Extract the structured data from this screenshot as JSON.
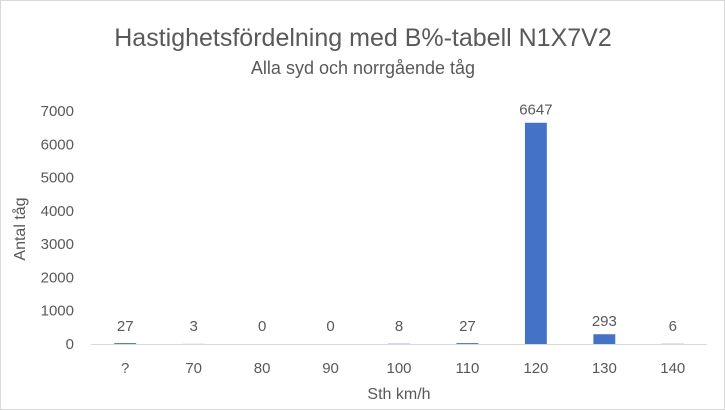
{
  "chart_data": {
    "type": "bar",
    "title": "Hastighetsfördelning med B%-tabell N1X7V2",
    "subtitle": "Alla syd och norrgående tåg",
    "xlabel": "Sth km/h",
    "ylabel": "Antal tåg",
    "categories": [
      "?",
      "70",
      "80",
      "90",
      "100",
      "110",
      "120",
      "130",
      "140"
    ],
    "values": [
      27,
      3,
      0,
      0,
      8,
      27,
      6647,
      293,
      6
    ],
    "data_labels": [
      "27",
      "3",
      "0",
      "0",
      "8",
      "27",
      "6647",
      "293",
      "6"
    ],
    "ylim": [
      0,
      7000
    ],
    "yticks": [
      0,
      1000,
      2000,
      3000,
      4000,
      5000,
      6000,
      7000
    ],
    "ytick_labels": [
      "0",
      "1000",
      "2000",
      "3000",
      "4000",
      "5000",
      "6000",
      "7000"
    ],
    "grid": false,
    "legend": "none",
    "bar_color": "#4472c4"
  }
}
